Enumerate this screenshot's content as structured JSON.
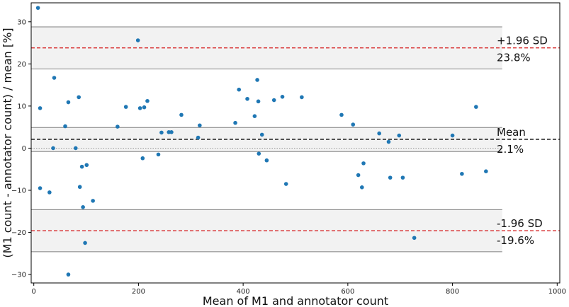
{
  "chart_data": {
    "type": "scatter",
    "title": "",
    "xlabel": "Mean of M1 and annotator count",
    "ylabel": "(M1 count - annotator count) / mean [%]",
    "xlim": [
      -5,
      1005
    ],
    "ylim": [
      -32,
      34.5
    ],
    "xticks": [
      0,
      200,
      400,
      600,
      800,
      1000
    ],
    "yticks": [
      -30,
      -20,
      -10,
      0,
      10,
      20,
      30
    ],
    "grid": false,
    "legend": "none",
    "colors": {
      "points": "#1f77b4",
      "limit_line": "#d62728",
      "mean_line": "#000000",
      "ci_band": "#f2f2f2",
      "ci_edge": "#808080",
      "zero_line": "#999999"
    },
    "ci_x_end": 895,
    "lines": [
      {
        "name": "+1.96 SD",
        "value": 23.8,
        "style": "limit",
        "ci": [
          18.8,
          28.8
        ],
        "label_top": "+1.96 SD",
        "label_bottom": "23.8%"
      },
      {
        "name": "Mean",
        "value": 2.1,
        "style": "mean",
        "ci": [
          -0.8,
          4.9
        ],
        "label_top": "Mean",
        "label_bottom": "2.1%"
      },
      {
        "name": "-1.96 SD",
        "value": -19.6,
        "style": "limit",
        "ci": [
          -24.6,
          -14.6
        ],
        "label_top": "-1.96 SD",
        "label_bottom": "-19.6%"
      }
    ],
    "zero_line": 0,
    "points": [
      [
        8,
        33.3
      ],
      [
        12,
        9.5
      ],
      [
        12,
        -9.5
      ],
      [
        30,
        -10.5
      ],
      [
        37,
        0
      ],
      [
        39,
        16.7
      ],
      [
        60,
        5.2
      ],
      [
        66,
        10.9
      ],
      [
        66,
        -30
      ],
      [
        80,
        0
      ],
      [
        86,
        12.1
      ],
      [
        88,
        -9.2
      ],
      [
        92,
        -4.4
      ],
      [
        94,
        -14.0
      ],
      [
        98,
        -22.5
      ],
      [
        101,
        -4.0
      ],
      [
        113,
        -12.5
      ],
      [
        160,
        5.1
      ],
      [
        176,
        9.8
      ],
      [
        199,
        25.6
      ],
      [
        203,
        9.5
      ],
      [
        208,
        -2.4
      ],
      [
        211,
        9.7
      ],
      [
        217,
        11.2
      ],
      [
        238,
        -1.5
      ],
      [
        244,
        3.7
      ],
      [
        258,
        3.8
      ],
      [
        263,
        3.8
      ],
      [
        282,
        7.9
      ],
      [
        314,
        2.5
      ],
      [
        317,
        5.4
      ],
      [
        385,
        6.0
      ],
      [
        392,
        13.9
      ],
      [
        408,
        11.7
      ],
      [
        422,
        7.6
      ],
      [
        427,
        16.2
      ],
      [
        429,
        11.1
      ],
      [
        430,
        -1.3
      ],
      [
        436,
        3.2
      ],
      [
        445,
        -2.9
      ],
      [
        459,
        11.4
      ],
      [
        475,
        12.2
      ],
      [
        482,
        -8.5
      ],
      [
        512,
        12.1
      ],
      [
        588,
        7.9
      ],
      [
        610,
        5.6
      ],
      [
        620,
        -6.4
      ],
      [
        627,
        -9.3
      ],
      [
        630,
        -3.6
      ],
      [
        660,
        3.5
      ],
      [
        678,
        1.5
      ],
      [
        681,
        -7.0
      ],
      [
        698,
        3.0
      ],
      [
        705,
        -7.0
      ],
      [
        727,
        -21.3
      ],
      [
        800,
        3.0
      ],
      [
        818,
        -6.1
      ],
      [
        845,
        9.8
      ],
      [
        864,
        -5.5
      ]
    ]
  }
}
